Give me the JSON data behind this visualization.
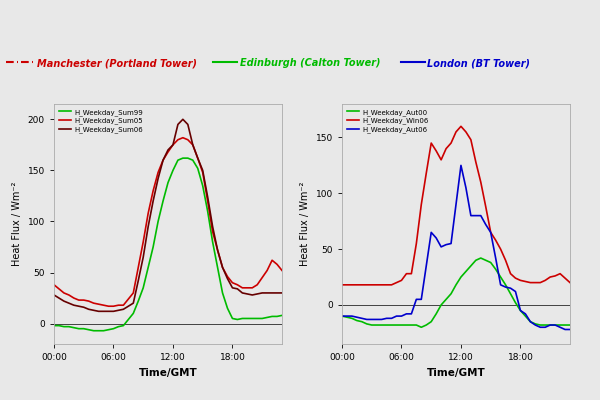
{
  "left_plot": {
    "ylabel": "Heat Flux / Wm⁻²",
    "xlabel": "Time/GMT",
    "ylim": [
      -20,
      215
    ],
    "yticks": [
      0,
      50,
      100,
      150,
      200
    ],
    "xticks": [
      0,
      6,
      12,
      18
    ],
    "xticklabels": [
      "00:00",
      "06:00",
      "12:00",
      "18:00"
    ],
    "legend_labels": [
      "H_Weekday_Sum99",
      "H_Weekday_Sum05",
      "H_Weekday_Sum06"
    ],
    "legend_colors": [
      "#00bb00",
      "#cc0000",
      "#660000"
    ],
    "series": [
      {
        "color": "#00bb00",
        "x": [
          0,
          0.5,
          1,
          1.5,
          2,
          2.5,
          3,
          3.5,
          4,
          4.5,
          5,
          5.5,
          6,
          6.5,
          7,
          7.5,
          8,
          8.5,
          9,
          9.5,
          10,
          10.5,
          11,
          11.5,
          12,
          12.5,
          13,
          13.5,
          14,
          14.5,
          15,
          15.5,
          16,
          16.5,
          17,
          17.5,
          18,
          18.5,
          19,
          19.5,
          20,
          20.5,
          21,
          21.5,
          22,
          22.5,
          23
        ],
        "y": [
          -2,
          -2,
          -3,
          -3,
          -4,
          -5,
          -5,
          -6,
          -7,
          -7,
          -7,
          -6,
          -5,
          -3,
          -2,
          4,
          10,
          22,
          35,
          55,
          75,
          100,
          120,
          138,
          150,
          160,
          162,
          162,
          160,
          152,
          135,
          110,
          80,
          55,
          30,
          15,
          5,
          4,
          5,
          5,
          5,
          5,
          5,
          6,
          7,
          7,
          8
        ]
      },
      {
        "color": "#cc0000",
        "x": [
          0,
          0.5,
          1,
          1.5,
          2,
          2.5,
          3,
          3.5,
          4,
          4.5,
          5,
          5.5,
          6,
          6.5,
          7,
          7.5,
          8,
          8.5,
          9,
          9.5,
          10,
          10.5,
          11,
          11.5,
          12,
          12.5,
          13,
          13.5,
          14,
          14.5,
          15,
          15.5,
          16,
          16.5,
          17,
          17.5,
          18,
          18.5,
          19,
          19.5,
          20,
          20.5,
          21,
          21.5,
          22,
          22.5,
          23
        ],
        "y": [
          38,
          34,
          30,
          28,
          25,
          23,
          23,
          22,
          20,
          19,
          18,
          17,
          17,
          18,
          18,
          24,
          30,
          55,
          80,
          108,
          130,
          148,
          160,
          168,
          175,
          180,
          182,
          180,
          175,
          162,
          148,
          120,
          90,
          72,
          55,
          46,
          40,
          38,
          35,
          35,
          35,
          38,
          45,
          52,
          62,
          58,
          52
        ]
      },
      {
        "color": "#660000",
        "x": [
          0,
          0.5,
          1,
          1.5,
          2,
          2.5,
          3,
          3.5,
          4,
          4.5,
          5,
          5.5,
          6,
          6.5,
          7,
          7.5,
          8,
          8.5,
          9,
          9.5,
          10,
          10.5,
          11,
          11.5,
          12,
          12.5,
          13,
          13.5,
          14,
          14.5,
          15,
          15.5,
          16,
          16.5,
          17,
          17.5,
          18,
          18.5,
          19,
          19.5,
          20,
          20.5,
          21,
          21.5,
          22,
          22.5,
          23
        ],
        "y": [
          28,
          25,
          22,
          20,
          18,
          17,
          16,
          14,
          13,
          12,
          12,
          12,
          12,
          13,
          14,
          17,
          20,
          42,
          65,
          95,
          120,
          142,
          160,
          170,
          175,
          195,
          200,
          195,
          175,
          162,
          150,
          124,
          95,
          72,
          55,
          44,
          35,
          34,
          30,
          29,
          28,
          29,
          30,
          30,
          30,
          30,
          30
        ]
      }
    ]
  },
  "right_plot": {
    "ylabel": "Heat Flux / Wm⁻²",
    "xlabel": "Time/GMT",
    "ylim": [
      -35,
      180
    ],
    "yticks": [
      0,
      50,
      100,
      150
    ],
    "xticks": [
      0,
      6,
      12,
      18
    ],
    "xticklabels": [
      "00:00",
      "06:00",
      "12:00",
      "18:00"
    ],
    "legend_labels": [
      "H_Weekday_Aut00",
      "H_Weekday_Win06",
      "H_Weekday_Aut06"
    ],
    "legend_colors": [
      "#00bb00",
      "#cc0000",
      "#0000cc"
    ],
    "series": [
      {
        "color": "#00bb00",
        "x": [
          0,
          0.5,
          1,
          1.5,
          2,
          2.5,
          3,
          3.5,
          4,
          4.5,
          5,
          5.5,
          6,
          6.5,
          7,
          7.5,
          8,
          8.5,
          9,
          9.5,
          10,
          10.5,
          11,
          11.5,
          12,
          12.5,
          13,
          13.5,
          14,
          14.5,
          15,
          15.5,
          16,
          16.5,
          17,
          17.5,
          18,
          18.5,
          19,
          19.5,
          20,
          20.5,
          21,
          21.5,
          22,
          22.5,
          23
        ],
        "y": [
          -10,
          -11,
          -12,
          -14,
          -15,
          -17,
          -18,
          -18,
          -18,
          -18,
          -18,
          -18,
          -18,
          -18,
          -18,
          -18,
          -20,
          -18,
          -15,
          -8,
          0,
          5,
          10,
          18,
          25,
          30,
          35,
          40,
          42,
          40,
          38,
          32,
          25,
          18,
          10,
          2,
          -5,
          -10,
          -15,
          -17,
          -18,
          -18,
          -18,
          -18,
          -18,
          -18,
          -18
        ]
      },
      {
        "color": "#cc0000",
        "x": [
          0,
          0.5,
          1,
          1.5,
          2,
          2.5,
          3,
          3.5,
          4,
          4.5,
          5,
          5.5,
          6,
          6.5,
          7,
          7.5,
          8,
          8.5,
          9,
          9.5,
          10,
          10.5,
          11,
          11.5,
          12,
          12.5,
          13,
          13.5,
          14,
          14.5,
          15,
          15.5,
          16,
          16.5,
          17,
          17.5,
          18,
          18.5,
          19,
          19.5,
          20,
          20.5,
          21,
          21.5,
          22,
          22.5,
          23
        ],
        "y": [
          18,
          18,
          18,
          18,
          18,
          18,
          18,
          18,
          18,
          18,
          18,
          20,
          22,
          28,
          28,
          55,
          90,
          118,
          145,
          138,
          130,
          140,
          145,
          155,
          160,
          155,
          148,
          128,
          110,
          88,
          65,
          58,
          50,
          40,
          28,
          24,
          22,
          21,
          20,
          20,
          20,
          22,
          25,
          26,
          28,
          24,
          20
        ]
      },
      {
        "color": "#0000cc",
        "x": [
          0,
          0.5,
          1,
          1.5,
          2,
          2.5,
          3,
          3.5,
          4,
          4.5,
          5,
          5.5,
          6,
          6.5,
          7,
          7.5,
          8,
          8.5,
          9,
          9.5,
          10,
          10.5,
          11,
          11.5,
          12,
          12.5,
          13,
          13.5,
          14,
          14.5,
          15,
          15.5,
          16,
          16.5,
          17,
          17.5,
          18,
          18.5,
          19,
          19.5,
          20,
          20.5,
          21,
          21.5,
          22,
          22.5,
          23
        ],
        "y": [
          -10,
          -10,
          -10,
          -11,
          -12,
          -13,
          -13,
          -13,
          -13,
          -12,
          -12,
          -10,
          -10,
          -8,
          -8,
          5,
          5,
          35,
          65,
          60,
          52,
          54,
          55,
          90,
          125,
          105,
          80,
          80,
          80,
          72,
          65,
          42,
          18,
          16,
          15,
          12,
          -5,
          -8,
          -15,
          -18,
          -20,
          -20,
          -18,
          -18,
          -20,
          -22,
          -22
        ]
      }
    ]
  },
  "manchester_color": "#cc0000",
  "edinburgh_color": "#00bb00",
  "london_color": "#0000cc",
  "bg_color": "#e8e8e8"
}
